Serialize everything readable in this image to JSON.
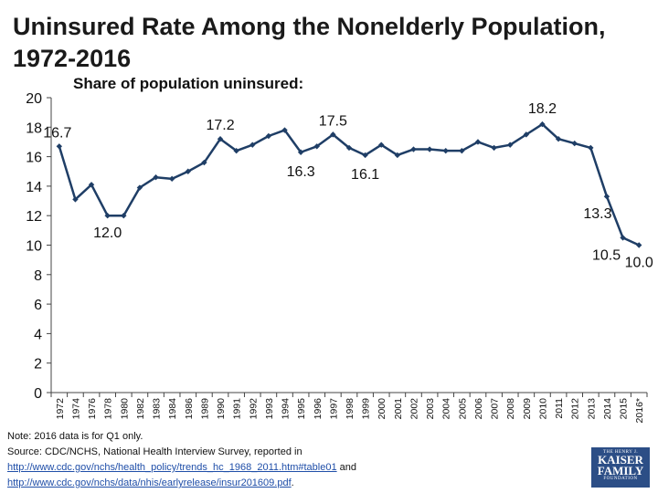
{
  "chart_data": {
    "type": "line",
    "title": "Uninsured Rate Among the Nonelderly Population, 1972-2016",
    "ylabel": "Share of population uninsured:",
    "xlabel": "",
    "ylim": [
      0,
      20
    ],
    "yticks": [
      0,
      2,
      4,
      6,
      8,
      10,
      12,
      14,
      16,
      18,
      20
    ],
    "grid": false,
    "categories": [
      "1972",
      "1974",
      "1976",
      "1978",
      "1980",
      "1982",
      "1983",
      "1984",
      "1986",
      "1989",
      "1990",
      "1991",
      "1992",
      "1993",
      "1994",
      "1995",
      "1996",
      "1997",
      "1998",
      "1999",
      "2000",
      "2001",
      "2002",
      "2003",
      "2004",
      "2005",
      "2006",
      "2007",
      "2008",
      "2009",
      "2010",
      "2011",
      "2012",
      "2013",
      "2014",
      "2015",
      "2016*"
    ],
    "series": [
      {
        "values": [
          16.7,
          13.1,
          14.1,
          12.0,
          12.0,
          13.9,
          14.6,
          14.5,
          15.0,
          15.6,
          17.2,
          16.4,
          16.8,
          17.4,
          17.8,
          16.3,
          16.7,
          17.5,
          16.6,
          16.1,
          16.8,
          16.1,
          16.5,
          16.5,
          16.4,
          16.4,
          17.0,
          16.6,
          16.8,
          17.5,
          18.2,
          17.2,
          16.9,
          16.6,
          13.3,
          10.5,
          10.0
        ],
        "color": "#1f3e66"
      }
    ],
    "data_labels": [
      {
        "index": 0,
        "text": "16.7"
      },
      {
        "index": 3,
        "text": "12.0"
      },
      {
        "index": 10,
        "text": "17.2"
      },
      {
        "index": 15,
        "text": "16.3"
      },
      {
        "index": 17,
        "text": "17.5"
      },
      {
        "index": 19,
        "text": "16.1"
      },
      {
        "index": 30,
        "text": "18.2"
      },
      {
        "index": 34,
        "text": "13.3"
      },
      {
        "index": 35,
        "text": "10.5"
      },
      {
        "index": 36,
        "text": "10.0"
      }
    ]
  },
  "footer": {
    "note": "Note: 2016 data is for Q1 only.",
    "source": "Source: CDC/NCHS, National Health Interview Survey, reported in",
    "link1": "http://www.cdc.gov/nchs/health_policy/trends_hc_1968_2011.htm#table01",
    "and": "and",
    "link2": "http://www.cdc.gov/nchs/data/nhis/earlyrelease/insur201609.pdf",
    "period": "."
  },
  "logo": {
    "line1": "THE HENRY J.",
    "line2": "KAISER",
    "line3": "FAMILY",
    "line4": "FOUNDATION"
  }
}
